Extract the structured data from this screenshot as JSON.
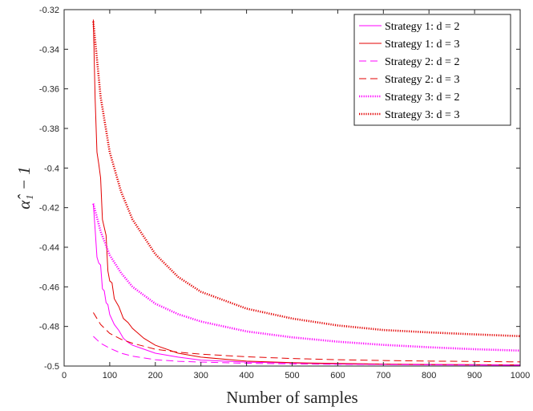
{
  "chart_data": {
    "type": "line",
    "title": "",
    "xlabel": "Number of samples",
    "ylabel": "α̂₁ − 1",
    "xlim": [
      0,
      1000
    ],
    "ylim": [
      -0.5,
      -0.32
    ],
    "xticks": [
      0,
      100,
      200,
      300,
      400,
      500,
      600,
      700,
      800,
      900,
      1000
    ],
    "yticks": [
      -0.5,
      -0.48,
      -0.46,
      -0.44,
      -0.42,
      -0.4,
      -0.38,
      -0.36,
      -0.34,
      -0.32
    ],
    "xtick_labels": [
      "0",
      "100",
      "200",
      "300",
      "400",
      "500",
      "600",
      "700",
      "800",
      "900",
      "1000"
    ],
    "ytick_labels": [
      "-0.5",
      "-0.48",
      "-0.46",
      "-0.44",
      "-0.42",
      "-0.4",
      "-0.38",
      "-0.36",
      "-0.34",
      "-0.32"
    ],
    "grid": false,
    "legend_position": "top-right",
    "series": [
      {
        "name": "Strategy 1: d = 2",
        "color": "#ff00ff",
        "style": "solid",
        "x": [
          64,
          68,
          72,
          76,
          80,
          84,
          88,
          92,
          96,
          100,
          110,
          120,
          130,
          140,
          150,
          175,
          200,
          250,
          300,
          400,
          500,
          600,
          700,
          800,
          900,
          1000
        ],
        "y": [
          -0.418,
          -0.431,
          -0.445,
          -0.448,
          -0.449,
          -0.461,
          -0.462,
          -0.468,
          -0.469,
          -0.474,
          -0.479,
          -0.482,
          -0.486,
          -0.488,
          -0.4895,
          -0.4915,
          -0.4935,
          -0.4955,
          -0.497,
          -0.498,
          -0.4985,
          -0.499,
          -0.4992,
          -0.4994,
          -0.4995,
          -0.4996
        ]
      },
      {
        "name": "Strategy 1: d = 3",
        "color": "#e30000",
        "style": "solid",
        "x": [
          64,
          68,
          72,
          76,
          80,
          84,
          88,
          92,
          96,
          100,
          105,
          110,
          120,
          130,
          140,
          150,
          175,
          200,
          250,
          300,
          400,
          500,
          600,
          700,
          800,
          900,
          1000
        ],
        "y": [
          -0.325,
          -0.365,
          -0.392,
          -0.398,
          -0.405,
          -0.426,
          -0.43,
          -0.434,
          -0.452,
          -0.457,
          -0.458,
          -0.466,
          -0.47,
          -0.476,
          -0.478,
          -0.481,
          -0.486,
          -0.4895,
          -0.4935,
          -0.4955,
          -0.4975,
          -0.4983,
          -0.4987,
          -0.499,
          -0.4992,
          -0.4993,
          -0.4994
        ]
      },
      {
        "name": "Strategy 2: d = 2",
        "color": "#ff00ff",
        "style": "dashed",
        "x": [
          64,
          80,
          100,
          125,
          150,
          200,
          250,
          300,
          400,
          500,
          600,
          700,
          800,
          900,
          1000
        ],
        "y": [
          -0.485,
          -0.4885,
          -0.491,
          -0.4935,
          -0.495,
          -0.4968,
          -0.4976,
          -0.498,
          -0.4986,
          -0.4989,
          -0.4991,
          -0.4992,
          -0.4993,
          -0.4994,
          -0.4995
        ]
      },
      {
        "name": "Strategy 2: d = 3",
        "color": "#e30000",
        "style": "dashed",
        "x": [
          64,
          80,
          100,
          125,
          150,
          200,
          250,
          300,
          400,
          500,
          600,
          700,
          800,
          900,
          1000
        ],
        "y": [
          -0.473,
          -0.479,
          -0.4835,
          -0.4865,
          -0.4885,
          -0.4915,
          -0.493,
          -0.494,
          -0.4953,
          -0.4962,
          -0.4968,
          -0.4972,
          -0.4975,
          -0.4977,
          -0.4979
        ]
      },
      {
        "name": "Strategy 3: d = 2",
        "color": "#ff00ff",
        "style": "dotted",
        "x": [
          64,
          80,
          100,
          125,
          150,
          200,
          250,
          300,
          400,
          500,
          600,
          700,
          800,
          900,
          1000
        ],
        "y": [
          -0.418,
          -0.432,
          -0.444,
          -0.453,
          -0.46,
          -0.4685,
          -0.4738,
          -0.4775,
          -0.4825,
          -0.4855,
          -0.4877,
          -0.4893,
          -0.4905,
          -0.4915,
          -0.4922
        ]
      },
      {
        "name": "Strategy 3: d = 3",
        "color": "#e30000",
        "style": "dotted",
        "x": [
          64,
          80,
          100,
          125,
          150,
          200,
          250,
          300,
          400,
          500,
          600,
          700,
          800,
          900,
          1000
        ],
        "y": [
          -0.326,
          -0.364,
          -0.392,
          -0.412,
          -0.426,
          -0.4435,
          -0.455,
          -0.4625,
          -0.471,
          -0.476,
          -0.4795,
          -0.4818,
          -0.483,
          -0.484,
          -0.4849
        ]
      }
    ]
  }
}
